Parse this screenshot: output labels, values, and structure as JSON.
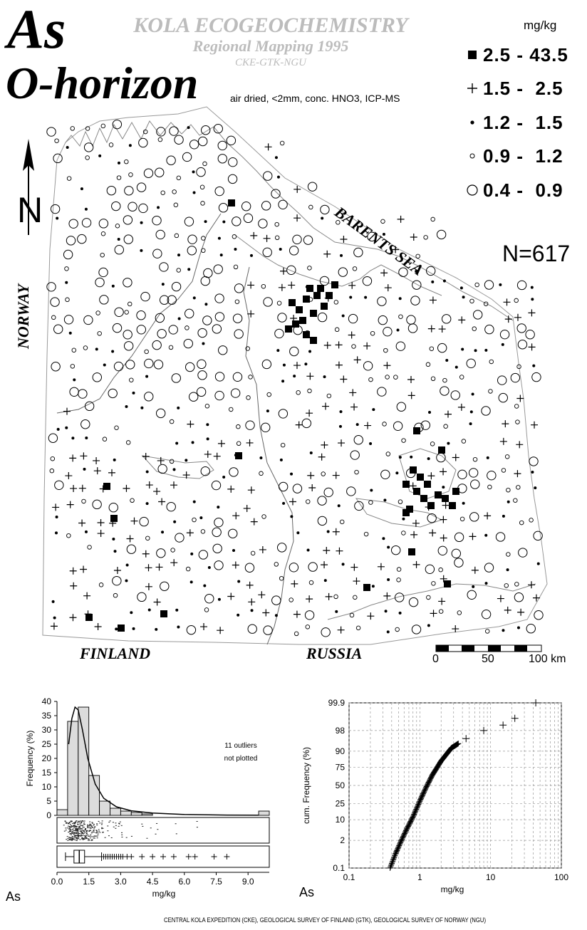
{
  "header": {
    "element": "As",
    "horizon": "O-horizon",
    "project_line1": "KOLA ECOGEOCHEMISTRY",
    "project_line2": "Regional Mapping 1995",
    "project_line3": "CKE-GTK-NGU",
    "method": "air dried, <2mm, conc. HNO3, ICP-MS"
  },
  "legend": {
    "unit": "mg/kg",
    "classes": [
      {
        "symbol": "filled-square-icon",
        "range": "2.5 - 43.5"
      },
      {
        "symbol": "plus-icon",
        "range": "1.5 -  2.5"
      },
      {
        "symbol": "dot-icon",
        "range": "1.2 -  1.5"
      },
      {
        "symbol": "small-circle-icon",
        "range": "0.9 -  1.2"
      },
      {
        "symbol": "large-circle-icon",
        "range": "0.4 -  0.9"
      }
    ],
    "n_label": "N=617"
  },
  "map": {
    "north_label": "N",
    "sea_label": "BARENTS SEA",
    "country_labels": {
      "norway": "NORWAY",
      "finland": "FINLAND",
      "russia": "RUSSIA"
    },
    "scale_bar": {
      "labels": [
        "0",
        "50",
        "100 km"
      ]
    }
  },
  "histogram": {
    "ylabel": "Frequency (%)",
    "xlabel": "mg/kg",
    "element": "As",
    "note_line1": "11 outliers",
    "note_line2": "not plotted",
    "yticks": [
      "0",
      "5",
      "10",
      "15",
      "20",
      "25",
      "30",
      "35",
      "40"
    ],
    "xticks": [
      "0.0",
      "1.5",
      "3.0",
      "4.5",
      "6.0",
      "7.5",
      "9.0"
    ]
  },
  "cdf": {
    "ylabel": "cum. Frequency (%)",
    "xlabel": "mg/kg",
    "element": "As",
    "yticks": [
      "0.1",
      "2",
      "10",
      "25",
      "50",
      "75",
      "90",
      "98",
      "99.9"
    ],
    "xticks": [
      "0.1",
      "1",
      "10",
      "100"
    ]
  },
  "footer": "CENTRAL KOLA EXPEDITION (CKE), GEOLOGICAL SURVEY OF FINLAND (GTK), GEOLOGICAL SURVEY OF NORWAY (NGU)",
  "chart_data": [
    {
      "type": "bar",
      "title": "",
      "xlabel": "mg/kg",
      "ylabel": "Frequency (%)",
      "categories": [
        "0.0-0.5",
        "0.5-1.0",
        "1.0-1.5",
        "1.5-2.0",
        "2.0-2.5",
        "2.5-3.0",
        "3.0-3.5",
        "3.5-4.0",
        "4.0-4.5",
        "9.5-10.0"
      ],
      "values": [
        2,
        33,
        38,
        14,
        5,
        2.5,
        1.5,
        1,
        0.5,
        1.5
      ],
      "ylim": [
        0,
        40
      ],
      "xlim": [
        0,
        10
      ]
    },
    {
      "type": "scatter",
      "title": "",
      "xlabel": "mg/kg",
      "ylabel": "cum. Frequency (%)",
      "x_scale": "log",
      "y_scale": "probability",
      "xlim": [
        0.1,
        100
      ],
      "ylim": [
        0.1,
        99.9
      ],
      "x": [
        0.38,
        0.45,
        0.55,
        0.65,
        0.8,
        1.0,
        1.2,
        1.5,
        2.0,
        2.8,
        4.5,
        8.0,
        15,
        22,
        43.5
      ],
      "y": [
        0.1,
        0.5,
        2,
        5,
        12,
        28,
        45,
        65,
        82,
        92,
        96,
        98,
        98.8,
        99.4,
        99.9
      ]
    }
  ]
}
